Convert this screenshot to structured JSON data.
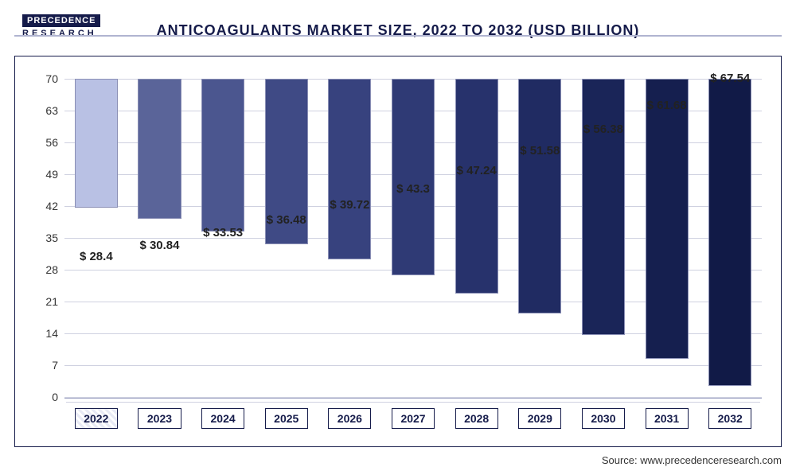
{
  "logo": {
    "line1": "PRECEDENCE",
    "line2": "RESEARCH"
  },
  "title": "ANTICOAGULANTS MARKET SIZE, 2022 TO 2032 (USD BILLION)",
  "source": "Source: www.precedenceresearch.com",
  "chart": {
    "type": "bar",
    "ylim": [
      0,
      70
    ],
    "ytick_step": 7,
    "yticks": [
      0,
      7,
      14,
      21,
      28,
      35,
      42,
      49,
      56,
      63,
      70
    ],
    "categories": [
      "2022",
      "2023",
      "2024",
      "2025",
      "2026",
      "2027",
      "2028",
      "2029",
      "2030",
      "2031",
      "2032"
    ],
    "values": [
      28.4,
      30.84,
      33.53,
      36.48,
      39.72,
      43.3,
      47.24,
      51.58,
      56.38,
      61.68,
      67.54
    ],
    "value_labels": [
      "$ 28.4",
      "$ 30.84",
      "$ 33.53",
      "$ 36.48",
      "$ 39.72",
      "$ 43.3",
      "$ 47.24",
      "$ 51.58",
      "$ 56.38",
      "$ 61.68",
      "$ 67.54"
    ],
    "bar_colors": [
      "#b9c1e4",
      "#5a6499",
      "#4b568f",
      "#3f4a85",
      "#37427e",
      "#2f3a75",
      "#27326c",
      "#202b62",
      "#1a2558",
      "#151f4f",
      "#111a47"
    ],
    "bar_border": "#8a8fb5",
    "grid_color": "#cfd1e0",
    "background_color": "#ffffff",
    "frame_border": "#151b4a",
    "label_fontsize": 15,
    "tick_fontsize": 14,
    "title_fontsize": 18,
    "bar_width": 0.68
  }
}
